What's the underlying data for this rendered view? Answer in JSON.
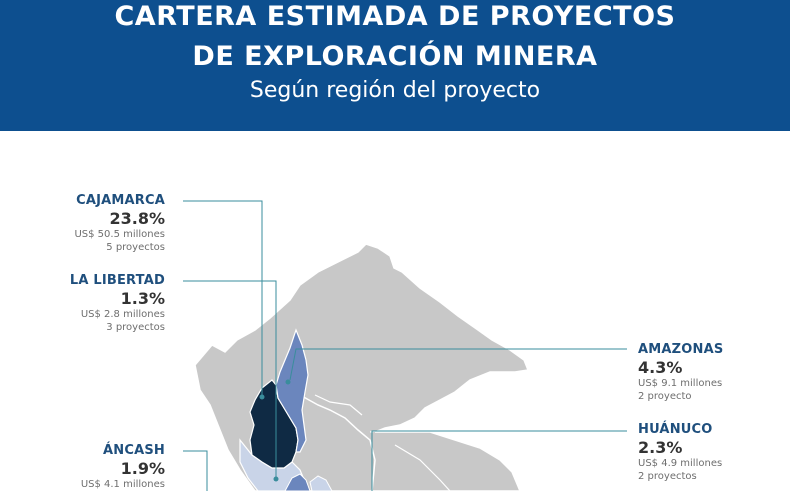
{
  "header": {
    "title_line1": "CARTERA ESTIMADA DE PROYECTOS",
    "title_line2": "DE EXPLORACIÓN MINERA",
    "subtitle": "Según región del proyecto",
    "background_color": "#0d4f8f"
  },
  "regions": [
    {
      "name": "CAJAMARCA",
      "pct": "23.8%",
      "amount": "US$ 50.5 millones",
      "projects": "5 proyectos",
      "fill": "#0f2a44"
    },
    {
      "name": "LA LIBERTAD",
      "pct": "1.3%",
      "amount": "US$ 2.8 millones",
      "projects": "3 proyectos",
      "fill": "#c9d4e8"
    },
    {
      "name": "AMAZONAS",
      "pct": "4.3%",
      "amount": "US$ 9.1 millones",
      "projects": "2 proyecto",
      "fill": "#6b86bd"
    },
    {
      "name": "HUÁNUCO",
      "pct": "2.3%",
      "amount": "US$ 4.9 millones",
      "projects": "2 proyectos",
      "fill": "#c9d4e8"
    },
    {
      "name": "ÁNCASH",
      "pct": "1.9%",
      "amount": "US$ 4.1 millones",
      "projects": "",
      "fill": "#6b86bd"
    }
  ],
  "colors": {
    "land": "#c8c8c8",
    "border": "#ffffff",
    "leader": "#3a8d9c",
    "region_name": "#1f4f7d"
  }
}
